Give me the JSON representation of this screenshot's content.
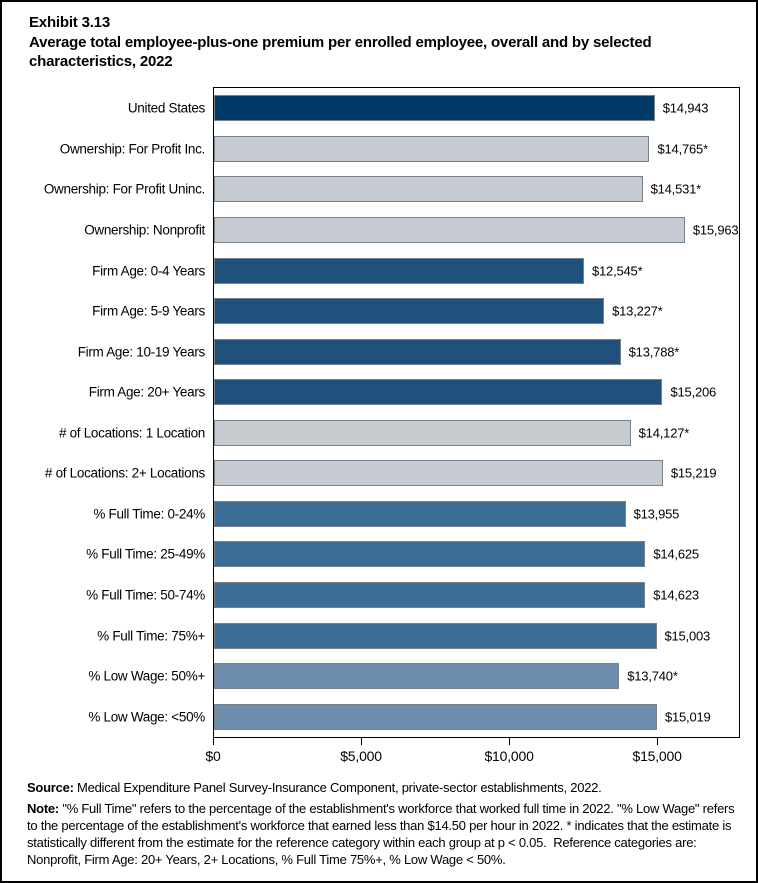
{
  "header": {
    "exhibit_label": "Exhibit 3.13",
    "title": "Average total employee-plus-one premium per enrolled employee, overall and by selected characteristics, 2022"
  },
  "chart_data": {
    "type": "bar",
    "orientation": "horizontal",
    "title": "Average total employee-plus-one premium per enrolled employee, overall and by selected characteristics, 2022",
    "xlabel": "",
    "ylabel": "",
    "xlim": [
      0,
      17800
    ],
    "grid": false,
    "legend": false,
    "ticks": [
      {
        "value": 0,
        "label": "$0"
      },
      {
        "value": 5000,
        "label": "$5,000"
      },
      {
        "value": 10000,
        "label": "$10,000"
      },
      {
        "value": 15000,
        "label": "$15,000"
      }
    ],
    "rows": [
      {
        "category": "United States",
        "value": 14943,
        "label": "$14,943",
        "group": "united-states"
      },
      {
        "category": "Ownership: For Profit Inc.",
        "value": 14765,
        "label": "$14,765*",
        "group": "ownership"
      },
      {
        "category": "Ownership: For Profit Uninc.",
        "value": 14531,
        "label": "$14,531*",
        "group": "ownership"
      },
      {
        "category": "Ownership: Nonprofit",
        "value": 15963,
        "label": "$15,963",
        "group": "ownership"
      },
      {
        "category": "Firm Age: 0-4 Years",
        "value": 12545,
        "label": "$12,545*",
        "group": "firm-age"
      },
      {
        "category": "Firm Age: 5-9 Years",
        "value": 13227,
        "label": "$13,227*",
        "group": "firm-age"
      },
      {
        "category": "Firm Age: 10-19 Years",
        "value": 13788,
        "label": "$13,788*",
        "group": "firm-age"
      },
      {
        "category": "Firm Age: 20+ Years",
        "value": 15206,
        "label": "$15,206",
        "group": "firm-age"
      },
      {
        "category": "# of Locations: 1 Location",
        "value": 14127,
        "label": "$14,127*",
        "group": "locations"
      },
      {
        "category": "# of Locations: 2+ Locations",
        "value": 15219,
        "label": "$15,219",
        "group": "locations"
      },
      {
        "category": "% Full Time: 0-24%",
        "value": 13955,
        "label": "$13,955",
        "group": "full-time"
      },
      {
        "category": "% Full Time: 25-49%",
        "value": 14625,
        "label": "$14,625",
        "group": "full-time"
      },
      {
        "category": "% Full Time: 50-74%",
        "value": 14623,
        "label": "$14,623",
        "group": "full-time"
      },
      {
        "category": "% Full Time: 75%+",
        "value": 15003,
        "label": "$15,003",
        "group": "full-time"
      },
      {
        "category": "% Low Wage: 50%+",
        "value": 13740,
        "label": "$13,740*",
        "group": "low-wage"
      },
      {
        "category": "% Low Wage: <50%",
        "value": 15019,
        "label": "$15,019",
        "group": "low-wage"
      }
    ],
    "group_colors": {
      "united-states": "#003A67",
      "ownership": "#C5CBD1",
      "firm-age": "#20507C",
      "locations": "#C5CBD1",
      "full-time": "#3C6D94",
      "low-wage": "#6C8DAB"
    },
    "bar_border_color": "#76818B"
  },
  "footer": {
    "source_label": "Source:",
    "source_text": " Medical Expenditure Panel Survey-Insurance Component, private-sector establishments, 2022.",
    "note_label": "Note:",
    "note_text": " \"% Full Time\" refers to the percentage of the establishment's workforce that worked full time in 2022. \"% Low Wage\" refers to the percentage of the establishment's workforce that earned less than $14.50 per hour in 2022. * indicates that the estimate is statistically different from the estimate for the reference category within each group at p < 0.05.  Reference categories are: Nonprofit, Firm Age: 20+ Years, 2+ Locations, % Full Time 75%+, % Low Wage < 50%."
  }
}
